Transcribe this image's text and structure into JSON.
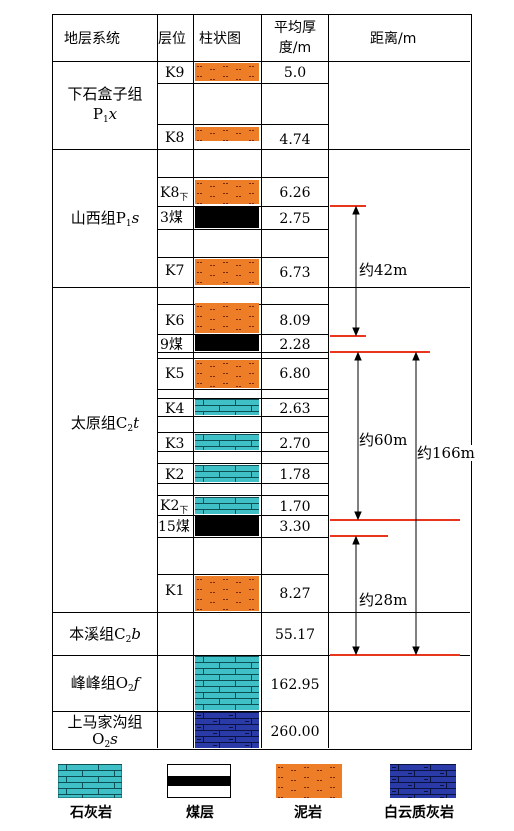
{
  "headers": {
    "stratum": "地层系统",
    "layer": "层位",
    "column": "柱状图",
    "thickness_line1": "平均厚",
    "thickness_line2": "度/m",
    "distance": "距离/m"
  },
  "formations": {
    "xiashihezi": {
      "line1": "下石盒子组",
      "sym": "P",
      "sub": "1",
      "suf": "x"
    },
    "shanxi": {
      "pre": "山西组",
      "sym": "P",
      "sub": "1",
      "suf": "s"
    },
    "taiyuan": {
      "pre": "太原组",
      "sym": "C",
      "sub": "2",
      "suf": "t"
    },
    "benxi": {
      "pre": "本溪组",
      "sym": "C",
      "sub": "2",
      "suf": "b"
    },
    "fengfeng": {
      "pre": "峰峰组",
      "sym": "O",
      "sub": "2",
      "suf": "f"
    },
    "shangmajiagou": {
      "line1": "上马家沟组",
      "sym": "O",
      "sub": "2",
      "suf": "s"
    }
  },
  "layers": [
    {
      "id": "K9",
      "label": "K9",
      "thickness": "5.0",
      "lith": "mudstone"
    },
    {
      "id": "K8",
      "label": "K8",
      "thickness": "4.74",
      "lith": "mudstone"
    },
    {
      "id": "K8x",
      "label": "K8",
      "label_sub": "下",
      "thickness": "6.26",
      "lith": "mudstone"
    },
    {
      "id": "coal3",
      "label": "3煤",
      "thickness": "2.75",
      "lith": "coal"
    },
    {
      "id": "K7",
      "label": "K7",
      "thickness": "6.73",
      "lith": "mudstone"
    },
    {
      "id": "K6",
      "label": "K6",
      "thickness": "8.09",
      "lith": "mudstone"
    },
    {
      "id": "coal9",
      "label": "9煤",
      "thickness": "2.28",
      "lith": "coal"
    },
    {
      "id": "K5",
      "label": "K5",
      "thickness": "6.80",
      "lith": "mudstone"
    },
    {
      "id": "K4",
      "label": "K4",
      "thickness": "2.63",
      "lith": "limestone"
    },
    {
      "id": "K3",
      "label": "K3",
      "thickness": "2.70",
      "lith": "limestone"
    },
    {
      "id": "K2",
      "label": "K2",
      "thickness": "1.78",
      "lith": "limestone"
    },
    {
      "id": "K2x",
      "label": "K2",
      "label_sub": "下",
      "thickness": "1.70",
      "lith": "limestone"
    },
    {
      "id": "coal15",
      "label": "15煤",
      "thickness": "3.30",
      "lith": "coal"
    },
    {
      "id": "K1",
      "label": "K1",
      "thickness": "8.27",
      "lith": "mudstone"
    },
    {
      "id": "benxi",
      "label": "",
      "thickness": "55.17",
      "lith": "none"
    },
    {
      "id": "fengfeng",
      "label": "",
      "thickness": "162.95",
      "lith": "limestone"
    },
    {
      "id": "majiagou",
      "label": "",
      "thickness": "260.00",
      "lith": "dolomite"
    }
  ],
  "distances": {
    "d42": "约42m",
    "d60": "约60m",
    "d166": "约166m",
    "d28": "约28m"
  },
  "legend": [
    {
      "name": "limestone",
      "label": "石灰岩"
    },
    {
      "name": "coal",
      "label": "煤层"
    },
    {
      "name": "mudstone",
      "label": "泥岩"
    },
    {
      "name": "dolomite",
      "label": "白云质灰岩"
    }
  ],
  "colors": {
    "mudstone": "#ee7d28",
    "limestone": "#3fbfc6",
    "coal": "#000000",
    "dolomite": "#2a3aa6",
    "marker_line": "#e8361c"
  }
}
